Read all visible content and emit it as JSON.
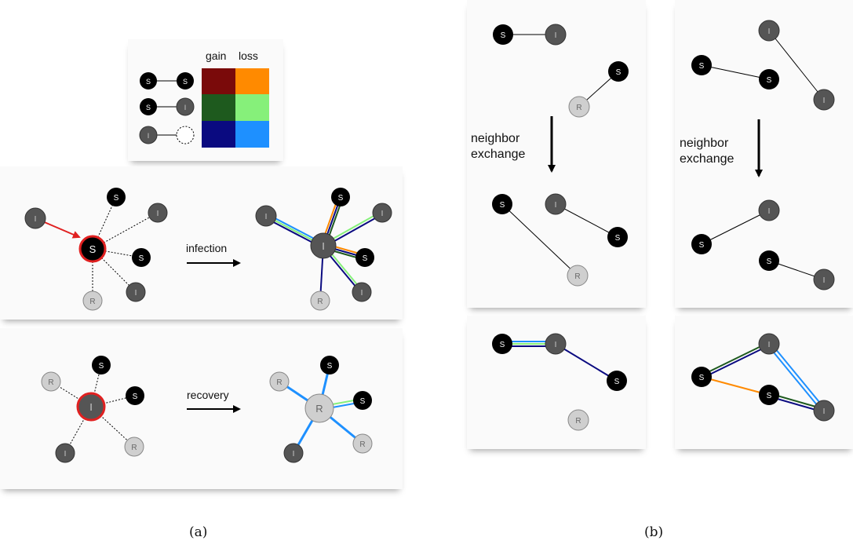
{
  "legend": {
    "gain": "gain",
    "loss": "loss",
    "rows": [
      {
        "left": "S",
        "right": "S",
        "gain": "#7a0a0a",
        "loss": "#ff8a00"
      },
      {
        "left": "S",
        "right": "I",
        "gain": "#1e5a1e",
        "loss": "#86f07a"
      },
      {
        "left": "I",
        "right": "",
        "gain": "#0a0a80",
        "loss": "#1e90ff"
      }
    ]
  },
  "arrows": {
    "infection": "infection",
    "recovery": "recovery",
    "exchange_left": [
      "neighbor",
      "exchange"
    ],
    "exchange_right": [
      "neighbor",
      "exchange"
    ]
  },
  "captions": {
    "a": "(a)",
    "b": "(b)"
  },
  "colors": {
    "S": "#000000",
    "I": "#555555",
    "R": "#cfcfcf",
    "ss_gain": "#7a0a0a",
    "ss_loss": "#ff8a00",
    "si_gain": "#1e5a1e",
    "si_loss": "#86f07a",
    "i_gain": "#0a0a80",
    "i_loss": "#1e90ff",
    "focus": "#e02020"
  },
  "node_labels": {
    "S": "S",
    "I": "I",
    "R": "R"
  }
}
